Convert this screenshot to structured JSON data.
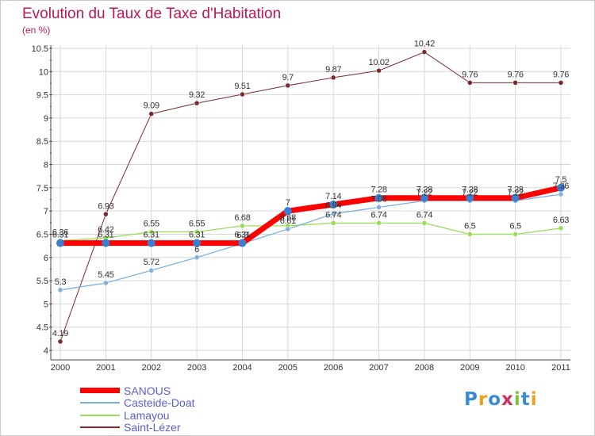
{
  "title": "Evolution du Taux de Taxe d'Habitation",
  "subtitle": "(en %)",
  "logo_text": "Proxiti",
  "colors": {
    "sanous": "#ff0000",
    "casteide": "#7fb0dd",
    "lamayou": "#99dd55",
    "saint_lezer": "#7a2a2a",
    "title": "#c0174f",
    "legend_text": "#5a5fc8"
  },
  "chart_data": {
    "type": "line",
    "title": "Evolution du Taux de Taxe d'Habitation",
    "ylabel": "(en %)",
    "x": [
      "2000",
      "2001",
      "2002",
      "2003",
      "2004",
      "2005",
      "2006",
      "2007",
      "2008",
      "2009",
      "2010",
      "2011"
    ],
    "ylim": [
      4,
      10.5
    ],
    "yticks": [
      "4",
      "4.5",
      "5",
      "5.5",
      "6",
      "6.5",
      "7",
      "7.5",
      "8",
      "8.5",
      "9",
      "9.5",
      "10",
      "10.5"
    ],
    "grid": true,
    "legend_position": "bottom-left",
    "series": [
      {
        "name": "SANOUS",
        "values": [
          6.31,
          6.31,
          6.31,
          6.31,
          6.31,
          7,
          7.14,
          7.28,
          7.28,
          7.28,
          7.28,
          7.5
        ],
        "labels": [
          "6.31",
          "6.31",
          "6.31",
          "6.31",
          "6.31",
          "7",
          "7.14",
          "7.28",
          "7.28",
          "7.28",
          "7.28",
          "7.5"
        ]
      },
      {
        "name": "Casteide-Doat",
        "values": [
          5.3,
          5.45,
          5.72,
          6,
          6.3,
          6.61,
          6.94,
          7.08,
          7.22,
          7.22,
          7.22,
          7.36
        ],
        "labels": [
          "5.3",
          "5.45",
          "5.72",
          "6",
          "6.3",
          "6.61",
          "6.94",
          "7.08",
          "7.22",
          "7.22",
          "7.22",
          "7.36"
        ]
      },
      {
        "name": "Lamayou",
        "values": [
          6.36,
          6.42,
          6.55,
          6.55,
          6.68,
          6.68,
          6.74,
          6.74,
          6.74,
          6.5,
          6.5,
          6.63
        ],
        "labels": [
          "6.36",
          "6.42",
          "6.55",
          "6.55",
          "6.68",
          "6.68",
          "6.74",
          "6.74",
          "6.74",
          "6.5",
          "6.5",
          "6.63"
        ]
      },
      {
        "name": "Saint-Lézer",
        "values": [
          4.19,
          6.93,
          9.09,
          9.32,
          9.51,
          9.7,
          9.87,
          10.02,
          10.42,
          9.76,
          9.76,
          9.76
        ],
        "labels": [
          "4.19",
          "6.93",
          "9.09",
          "9.32",
          "9.51",
          "9.7",
          "9.87",
          "10.02",
          "10.42",
          "9.76",
          "9.76",
          "9.76"
        ]
      }
    ]
  }
}
